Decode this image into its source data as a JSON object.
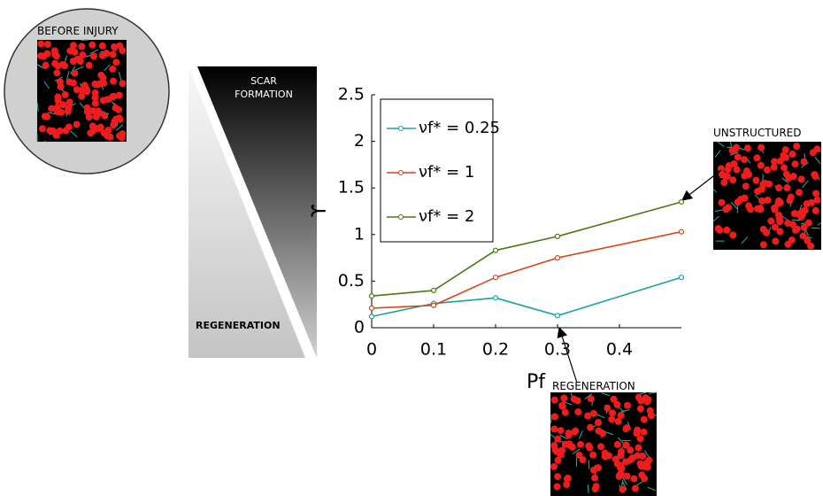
{
  "chart_data": {
    "type": "line",
    "x": [
      0,
      0.1,
      0.2,
      0.3,
      0.5
    ],
    "series": [
      {
        "name": "νf* = 0.25",
        "color": "#1aa0a0",
        "values": [
          0.12,
          0.26,
          0.32,
          0.13,
          0.54
        ]
      },
      {
        "name": "νf* = 1",
        "color": "#d9441a",
        "values": [
          0.21,
          0.24,
          0.54,
          0.75,
          1.03
        ]
      },
      {
        "name": "νf* = 2",
        "color": "#4a7a10",
        "values": [
          0.34,
          0.4,
          0.83,
          0.98,
          1.35
        ]
      }
    ],
    "xlabel": "Pf",
    "ylabel": "ϒ",
    "xlim": [
      0,
      0.5
    ],
    "xticks": [
      0,
      0.1,
      0.2,
      0.3,
      0.4
    ],
    "ylim": [
      0,
      2.5
    ],
    "yticks": [
      0,
      0.5,
      1,
      1.5,
      2,
      2.5
    ],
    "legend": "upper left",
    "annotations": [
      "BEFORE INJURY",
      "SCAR FORMATION",
      "REGENERATION",
      "UNSTRUCTURED",
      "REGENERATION"
    ]
  }
}
